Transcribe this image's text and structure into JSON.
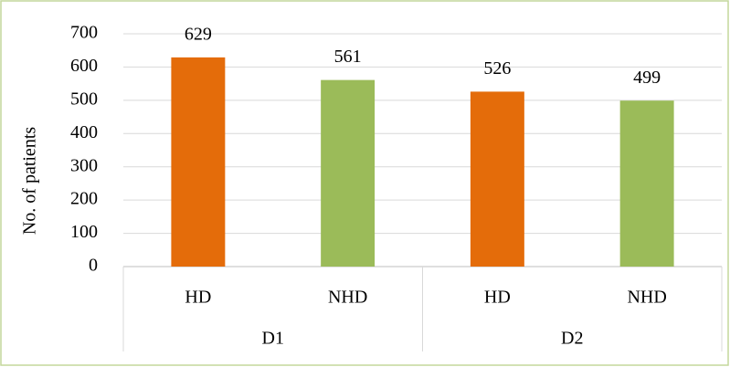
{
  "chart_data": {
    "type": "bar",
    "y_label": "No. of patients",
    "categories": [
      "HD",
      "NHD",
      "HD",
      "NHD"
    ],
    "groups": [
      "D1",
      "D2"
    ],
    "values": [
      629,
      561,
      526,
      499
    ],
    "colors": [
      "#e46c0a",
      "#9bbb59",
      "#e46c0a",
      "#9bbb59"
    ],
    "ylim": [
      0,
      700
    ],
    "yticks": [
      0,
      100,
      200,
      300,
      400,
      500,
      600,
      700
    ],
    "grid": true
  }
}
